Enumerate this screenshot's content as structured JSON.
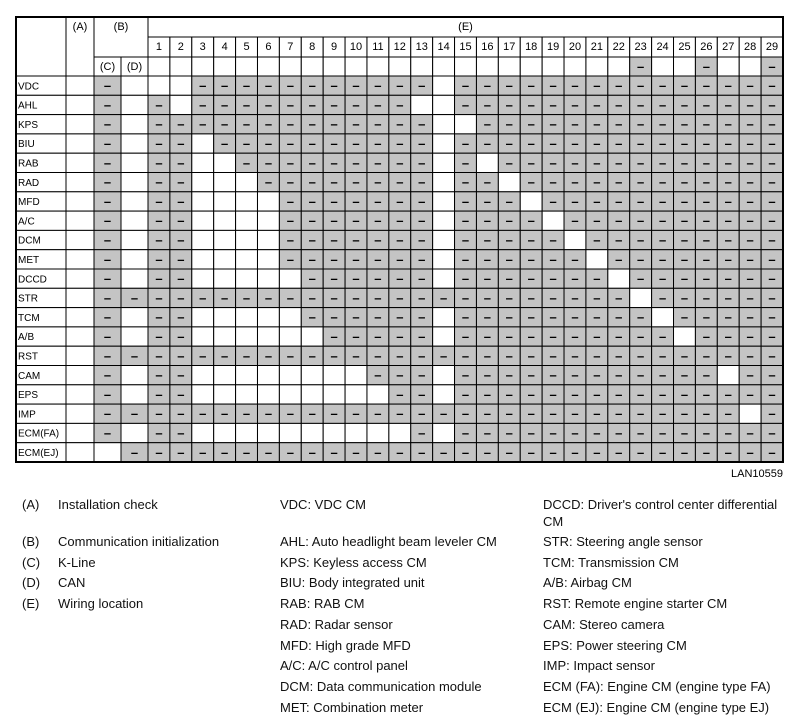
{
  "header": {
    "a": "(A)",
    "b": "(B)",
    "c": "(C)",
    "d": "(D)",
    "e": "(E)",
    "numbers": [
      1,
      2,
      3,
      4,
      5,
      6,
      7,
      8,
      9,
      10,
      11,
      12,
      13,
      14,
      15,
      16,
      17,
      18,
      19,
      20,
      21,
      22,
      23,
      24,
      25,
      26,
      27,
      28,
      29
    ],
    "e_cells": [
      null,
      null,
      null,
      null,
      null,
      null,
      null,
      null,
      null,
      null,
      null,
      null,
      null,
      null,
      null,
      null,
      null,
      null,
      null,
      null,
      null,
      null,
      "–",
      null,
      null,
      "–",
      null,
      null,
      "–"
    ]
  },
  "table": {
    "rows": [
      {
        "label": "VDC",
        "cells": [
          null,
          "–",
          null,
          null,
          null,
          "–",
          "–",
          "–",
          "–",
          "–",
          "–",
          "–",
          "–",
          "–",
          "–",
          "–",
          null,
          "–",
          "–",
          "–",
          "–",
          "–",
          "–",
          "–",
          "–",
          "–",
          "–",
          "–",
          "–",
          "–",
          "–",
          "–"
        ]
      },
      {
        "label": "AHL",
        "cells": [
          null,
          "–",
          null,
          "–",
          null,
          "–",
          "–",
          "–",
          "–",
          "–",
          "–",
          "–",
          "–",
          "–",
          "–",
          null,
          null,
          "–",
          "–",
          "–",
          "–",
          "–",
          "–",
          "–",
          "–",
          "–",
          "–",
          "–",
          "–",
          "–",
          "–",
          "–"
        ]
      },
      {
        "label": "KPS",
        "cells": [
          null,
          "–",
          null,
          "–",
          "–",
          "–",
          "–",
          "–",
          "–",
          "–",
          "–",
          "–",
          "–",
          "–",
          "–",
          "–",
          null,
          null,
          "–",
          "–",
          "–",
          "–",
          "–",
          "–",
          "–",
          "–",
          "–",
          "–",
          "–",
          "–",
          "–",
          "–"
        ]
      },
      {
        "label": "BIU",
        "cells": [
          null,
          "–",
          null,
          "–",
          "–",
          null,
          "–",
          "–",
          "–",
          "–",
          "–",
          "–",
          "–",
          "–",
          "–",
          "–",
          null,
          "–",
          "–",
          "–",
          "–",
          "–",
          "–",
          "–",
          "–",
          "–",
          "–",
          "–",
          "–",
          "–",
          "–",
          "–"
        ]
      },
      {
        "label": "RAB",
        "cells": [
          null,
          "–",
          null,
          "–",
          "–",
          null,
          null,
          "–",
          "–",
          "–",
          "–",
          "–",
          "–",
          "–",
          "–",
          "–",
          null,
          "–",
          null,
          "–",
          "–",
          "–",
          "–",
          "–",
          "–",
          "–",
          "–",
          "–",
          "–",
          "–",
          "–",
          "–"
        ]
      },
      {
        "label": "RAD",
        "cells": [
          null,
          "–",
          null,
          "–",
          "–",
          null,
          null,
          null,
          "–",
          "–",
          "–",
          "–",
          "–",
          "–",
          "–",
          "–",
          null,
          "–",
          "–",
          null,
          "–",
          "–",
          "–",
          "–",
          "–",
          "–",
          "–",
          "–",
          "–",
          "–",
          "–",
          "–"
        ]
      },
      {
        "label": "MFD",
        "cells": [
          null,
          "–",
          null,
          "–",
          "–",
          null,
          null,
          null,
          null,
          "–",
          "–",
          "–",
          "–",
          "–",
          "–",
          "–",
          null,
          "–",
          "–",
          "–",
          null,
          "–",
          "–",
          "–",
          "–",
          "–",
          "–",
          "–",
          "–",
          "–",
          "–",
          "–"
        ]
      },
      {
        "label": "A/C",
        "cells": [
          null,
          "–",
          null,
          "–",
          "–",
          null,
          null,
          null,
          null,
          "–",
          "–",
          "–",
          "–",
          "–",
          "–",
          "–",
          null,
          "–",
          "–",
          "–",
          "–",
          null,
          "–",
          "–",
          "–",
          "–",
          "–",
          "–",
          "–",
          "–",
          "–",
          "–"
        ]
      },
      {
        "label": "DCM",
        "cells": [
          null,
          "–",
          null,
          "–",
          "–",
          null,
          null,
          null,
          null,
          "–",
          "–",
          "–",
          "–",
          "–",
          "–",
          "–",
          null,
          "–",
          "–",
          "–",
          "–",
          "–",
          null,
          "–",
          "–",
          "–",
          "–",
          "–",
          "–",
          "–",
          "–",
          "–"
        ]
      },
      {
        "label": "MET",
        "cells": [
          null,
          "–",
          null,
          "–",
          "–",
          null,
          null,
          null,
          null,
          "–",
          "–",
          "–",
          "–",
          "–",
          "–",
          "–",
          null,
          "–",
          "–",
          "–",
          "–",
          "–",
          "–",
          null,
          "–",
          "–",
          "–",
          "–",
          "–",
          "–",
          "–",
          "–"
        ]
      },
      {
        "label": "DCCD",
        "cells": [
          null,
          "–",
          null,
          "–",
          "–",
          null,
          null,
          null,
          null,
          null,
          "–",
          "–",
          "–",
          "–",
          "–",
          "–",
          null,
          "–",
          "–",
          "–",
          "–",
          "–",
          "–",
          "–",
          null,
          "–",
          "–",
          "–",
          "–",
          "–",
          "–",
          "–"
        ]
      },
      {
        "label": "STR",
        "cells": [
          null,
          "–",
          "–",
          "–",
          "–",
          "–",
          "–",
          "–",
          "–",
          "–",
          "–",
          "–",
          "–",
          "–",
          "–",
          "–",
          "–",
          "–",
          "–",
          "–",
          "–",
          "–",
          "–",
          "–",
          "–",
          null,
          "–",
          "–",
          "–",
          "–",
          "–",
          "–"
        ]
      },
      {
        "label": "TCM",
        "cells": [
          null,
          "–",
          null,
          "–",
          "–",
          null,
          null,
          null,
          null,
          null,
          "–",
          "–",
          "–",
          "–",
          "–",
          "–",
          null,
          "–",
          "–",
          "–",
          "–",
          "–",
          "–",
          "–",
          "–",
          "–",
          null,
          "–",
          "–",
          "–",
          "–",
          "–"
        ]
      },
      {
        "label": "A/B",
        "cells": [
          null,
          "–",
          null,
          "–",
          "–",
          null,
          null,
          null,
          null,
          null,
          null,
          "–",
          "–",
          "–",
          "–",
          "–",
          null,
          "–",
          "–",
          "–",
          "–",
          "–",
          "–",
          "–",
          "–",
          "–",
          "–",
          null,
          "–",
          "–",
          "–",
          "–"
        ]
      },
      {
        "label": "RST",
        "cells": [
          null,
          "–",
          "–",
          "–",
          "–",
          "–",
          "–",
          "–",
          "–",
          "–",
          "–",
          "–",
          "–",
          "–",
          "–",
          "–",
          "–",
          "–",
          "–",
          "–",
          "–",
          "–",
          "–",
          "–",
          "–",
          "–",
          "–",
          "–",
          "–",
          "–",
          "–",
          "–"
        ]
      },
      {
        "label": "CAM",
        "cells": [
          null,
          "–",
          null,
          "–",
          "–",
          null,
          null,
          null,
          null,
          null,
          null,
          null,
          null,
          "–",
          "–",
          "–",
          null,
          "–",
          "–",
          "–",
          "–",
          "–",
          "–",
          "–",
          "–",
          "–",
          "–",
          "–",
          "–",
          null,
          "–",
          "–"
        ]
      },
      {
        "label": "EPS",
        "cells": [
          null,
          "–",
          null,
          "–",
          "–",
          null,
          null,
          null,
          null,
          null,
          null,
          null,
          null,
          null,
          "–",
          "–",
          null,
          "–",
          "–",
          "–",
          "–",
          "–",
          "–",
          "–",
          "–",
          "–",
          "–",
          "–",
          "–",
          "–",
          "–",
          "–"
        ]
      },
      {
        "label": "IMP",
        "cells": [
          null,
          "–",
          "–",
          "–",
          "–",
          "–",
          "–",
          "–",
          "–",
          "–",
          "–",
          "–",
          "–",
          "–",
          "–",
          "–",
          "–",
          "–",
          "–",
          "–",
          "–",
          "–",
          "–",
          "–",
          "–",
          "–",
          "–",
          "–",
          "–",
          "–",
          null,
          "–"
        ]
      },
      {
        "label": "ECM(FA)",
        "cells": [
          null,
          "–",
          null,
          "–",
          "–",
          null,
          null,
          null,
          null,
          null,
          null,
          null,
          null,
          null,
          null,
          "–",
          null,
          "–",
          "–",
          "–",
          "–",
          "–",
          "–",
          "–",
          "–",
          "–",
          "–",
          "–",
          "–",
          "–",
          "–",
          "–"
        ]
      },
      {
        "label": "ECM(EJ)",
        "cells": [
          null,
          null,
          "–",
          "–",
          "–",
          "–",
          "–",
          "–",
          "–",
          "–",
          "–",
          "–",
          "–",
          "–",
          "–",
          "–",
          "–",
          "–",
          "–",
          "–",
          "–",
          "–",
          "–",
          "–",
          "–",
          "–",
          "–",
          "–",
          "–",
          "–",
          "–",
          "–"
        ]
      }
    ]
  },
  "figure_id": "LAN10559",
  "legend": {
    "keys": [
      {
        "key": "(A)",
        "text": "Installation check"
      },
      {
        "key": "(B)",
        "text": "Communication initialization"
      },
      {
        "key": "(C)",
        "text": "K-Line"
      },
      {
        "key": "(D)",
        "text": "CAN"
      },
      {
        "key": "(E)",
        "text": "Wiring location"
      }
    ],
    "middle": [
      "VDC: VDC CM",
      "AHL: Auto headlight beam leveler CM",
      "KPS: Keyless access CM",
      "BIU: Body integrated unit",
      "RAB: RAB CM",
      "RAD: Radar sensor",
      "MFD: High grade MFD",
      "A/C: A/C control panel",
      "DCM: Data communication module",
      "MET: Combination meter"
    ],
    "right": [
      "DCCD: Driver's control center differential CM",
      "STR: Steering angle sensor",
      "TCM: Transmission CM",
      "A/B: Airbag CM",
      "RST: Remote engine starter CM",
      "CAM: Stereo camera",
      "EPS: Power steering CM",
      "IMP: Impact sensor",
      "ECM (FA): Engine CM (engine type FA)",
      "ECM (EJ): Engine CM (engine type EJ)"
    ]
  }
}
